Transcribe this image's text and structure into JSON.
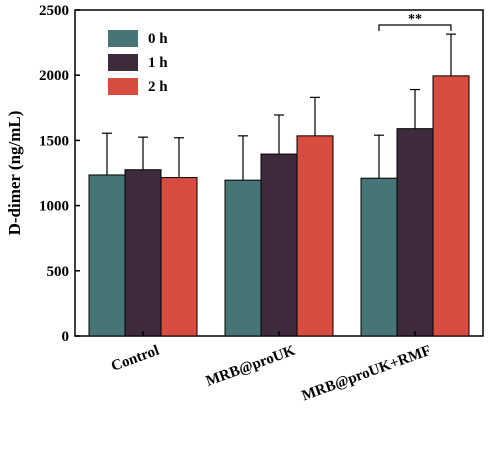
{
  "chart_data": {
    "type": "bar",
    "ylabel": "D-dimer (ng/mL)",
    "xlabel": "",
    "ylim": [
      0,
      2500
    ],
    "yticks": [
      0,
      500,
      1000,
      1500,
      2000,
      2500
    ],
    "categories": [
      "Control",
      "MRB@proUK",
      "MRB@proUK+RMF"
    ],
    "series": [
      {
        "name": "0 h",
        "color": "#477577",
        "values": [
          1235,
          1195,
          1210
        ],
        "errors": [
          320,
          340,
          330
        ]
      },
      {
        "name": "1 h",
        "color": "#3e2a3d",
        "values": [
          1275,
          1395,
          1590
        ],
        "errors": [
          250,
          300,
          300
        ]
      },
      {
        "name": "2 h",
        "color": "#d84c3f",
        "values": [
          1215,
          1535,
          1995
        ],
        "errors": [
          305,
          295,
          320
        ]
      }
    ],
    "legend_position": "top-left",
    "annotations": [
      {
        "text": "**",
        "between": [
          "MRB@proUK+RMF 0 h",
          "MRB@proUK+RMF 2 h"
        ]
      }
    ]
  }
}
